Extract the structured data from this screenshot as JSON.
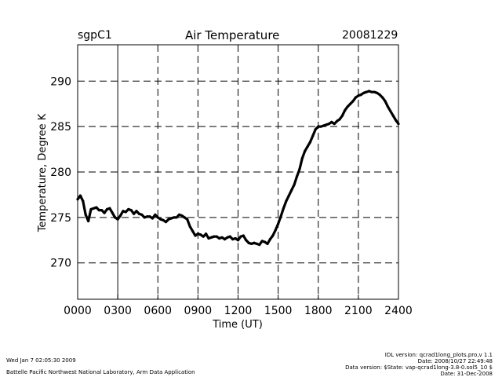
{
  "header": {
    "site": "sgpC1",
    "title": "Air Temperature",
    "date": "20081229"
  },
  "footer": {
    "generated": "Wed Jan  7 02:05:30 2009",
    "lab": "Battelle Pacific Northwest National Laboratory, Arm Data Application",
    "idl_version": "IDL version: qcrad1long_plots.pro,v 1.1",
    "idl_date": "Date: 2008/10/27 22:49:48",
    "data_version": "Data version: $State: vap-qcrad1long-3.8-0.sol5_10 $",
    "data_date": "Date: 31-Dec-2008"
  },
  "chart_data": {
    "type": "line",
    "title": "Air Temperature",
    "xlabel": "Time (UT)",
    "ylabel": "Temperature, Degree K",
    "xlim": [
      0,
      24
    ],
    "ylim": [
      266,
      294
    ],
    "grid": true,
    "x_ticks": [
      0,
      3,
      6,
      9,
      12,
      15,
      18,
      21,
      24
    ],
    "x_tick_labels": [
      "0000",
      "0300",
      "0600",
      "0900",
      "1200",
      "1500",
      "1800",
      "2100",
      "2400"
    ],
    "y_ticks": [
      270,
      275,
      280,
      285,
      290
    ],
    "y_tick_labels": [
      "270",
      "275",
      "280",
      "285",
      "290"
    ],
    "series": [
      {
        "name": "Air Temperature",
        "x": [
          0.0,
          0.2,
          0.4,
          0.6,
          0.8,
          1.0,
          1.2,
          1.4,
          1.6,
          1.8,
          2.0,
          2.2,
          2.4,
          2.6,
          2.8,
          3.0,
          3.2,
          3.4,
          3.6,
          3.8,
          4.0,
          4.2,
          4.4,
          4.6,
          4.8,
          5.0,
          5.2,
          5.4,
          5.6,
          5.8,
          6.0,
          6.2,
          6.4,
          6.6,
          6.8,
          7.0,
          7.2,
          7.4,
          7.6,
          7.8,
          8.0,
          8.2,
          8.4,
          8.6,
          8.8,
          9.0,
          9.2,
          9.4,
          9.6,
          9.8,
          10.0,
          10.2,
          10.4,
          10.6,
          10.8,
          11.0,
          11.2,
          11.4,
          11.6,
          11.8,
          12.0,
          12.2,
          12.4,
          12.6,
          12.8,
          13.0,
          13.2,
          13.4,
          13.6,
          13.8,
          14.0,
          14.2,
          14.4,
          14.6,
          14.8,
          15.0,
          15.2,
          15.4,
          15.6,
          15.8,
          16.0,
          16.2,
          16.4,
          16.6,
          16.8,
          17.0,
          17.2,
          17.4,
          17.6,
          17.8,
          18.0,
          18.2,
          18.4,
          18.6,
          18.8,
          19.0,
          19.2,
          19.4,
          19.6,
          19.8,
          20.0,
          20.2,
          20.4,
          20.6,
          20.8,
          21.0,
          21.2,
          21.4,
          21.6,
          21.8,
          22.0,
          22.2,
          22.4,
          22.6,
          22.8,
          23.0,
          23.2,
          23.4,
          23.6,
          23.8,
          24.0
        ],
        "values": [
          277.0,
          277.4,
          276.8,
          275.3,
          274.6,
          275.9,
          276.0,
          276.1,
          275.8,
          275.8,
          275.5,
          275.9,
          276.0,
          275.5,
          275.0,
          274.8,
          275.2,
          275.7,
          275.6,
          275.9,
          275.8,
          275.4,
          275.7,
          275.4,
          275.3,
          275.0,
          275.1,
          275.1,
          274.9,
          275.3,
          275.0,
          274.8,
          274.7,
          274.5,
          274.8,
          274.9,
          275.0,
          275.0,
          275.3,
          275.2,
          275.0,
          274.8,
          274.0,
          273.5,
          273.0,
          273.2,
          273.1,
          272.9,
          273.2,
          272.7,
          272.8,
          272.9,
          272.9,
          272.7,
          272.8,
          272.6,
          272.8,
          272.9,
          272.6,
          272.7,
          272.5,
          272.9,
          273.0,
          272.5,
          272.2,
          272.1,
          272.2,
          272.1,
          272.0,
          272.4,
          272.3,
          272.1,
          272.6,
          273.0,
          273.6,
          274.3,
          275.1,
          276.0,
          276.8,
          277.4,
          278.0,
          278.6,
          279.5,
          280.3,
          281.5,
          282.3,
          282.8,
          283.3,
          284.0,
          284.7,
          285.0,
          285.0,
          285.1,
          285.2,
          285.3,
          285.5,
          285.3,
          285.6,
          285.8,
          286.2,
          286.8,
          287.2,
          287.5,
          287.8,
          288.2,
          288.4,
          288.5,
          288.7,
          288.8,
          288.9,
          288.8,
          288.8,
          288.7,
          288.5,
          288.2,
          287.8,
          287.2,
          286.7,
          286.2,
          285.7,
          285.3
        ]
      }
    ]
  }
}
